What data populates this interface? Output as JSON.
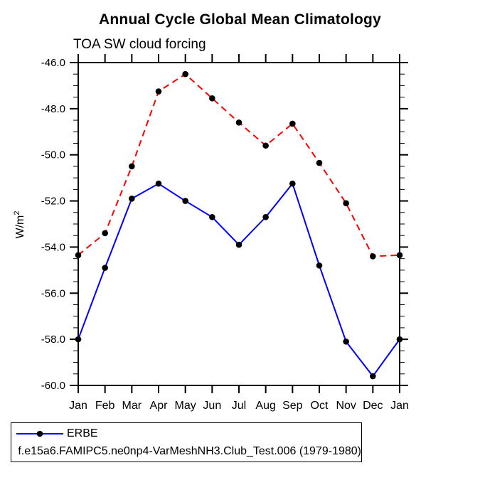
{
  "chart_data": {
    "type": "line",
    "title": "Annual Cycle Global Mean Climatology",
    "subtitle": "TOA SW cloud forcing",
    "ylabel": "W/m",
    "ylabel_exponent": "2",
    "categories": [
      "Jan",
      "Feb",
      "Mar",
      "Apr",
      "May",
      "Jun",
      "Jul",
      "Aug",
      "Sep",
      "Oct",
      "Nov",
      "Dec",
      "Jan"
    ],
    "ylim": [
      -60.0,
      -46.0
    ],
    "ytick_major_step": 2.0,
    "ytick_minor_step": 0.5,
    "ytick_labels": [
      "-46.0",
      "-48.0",
      "-50.0",
      "-52.0",
      "-54.0",
      "-56.0",
      "-58.0",
      "-60.0"
    ],
    "grid": false,
    "legend_position": "bottom-left",
    "axis_color": "#000000",
    "marker": "filled-circle",
    "marker_color": "#000000",
    "series": [
      {
        "name": "ERBE",
        "color": "#0000ff",
        "style": "solid",
        "values": [
          -58.0,
          -54.9,
          -51.9,
          -51.25,
          -52.0,
          -52.7,
          -53.9,
          -52.7,
          -51.25,
          -54.8,
          -58.1,
          -59.6,
          -58.0
        ]
      },
      {
        "name": "f.e15a6.FAMIPC5.ne0np4-VarMeshNH3.Club_Test.006 (1979-1980)",
        "color": "#ff0000",
        "style": "dashed",
        "values": [
          -54.35,
          -53.4,
          -50.5,
          -47.25,
          -46.5,
          -47.55,
          -48.6,
          -49.6,
          -48.65,
          -50.35,
          -52.1,
          -54.4,
          -54.35
        ]
      }
    ]
  }
}
